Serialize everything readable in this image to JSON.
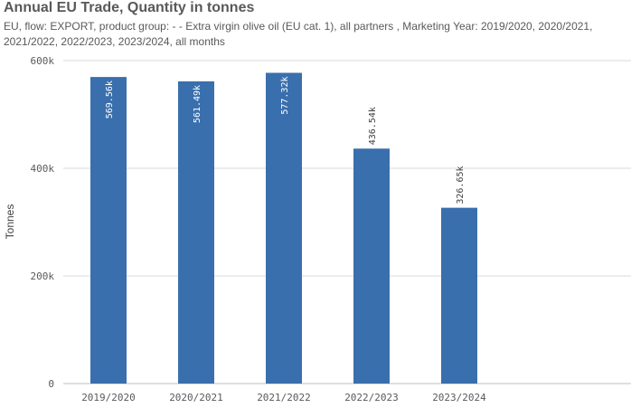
{
  "header": {
    "title": "Annual EU Trade, Quantity in tonnes",
    "subtitle": "EU, flow: EXPORT, product group: - - Extra virgin olive oil (EU cat. 1), all partners , Marketing Year: 2019/2020, 2020/2021, 2021/2022, 2022/2023, 2023/2024, all months"
  },
  "colors": {
    "bar": "#3a6fad",
    "grid": "#d9d9d9",
    "axis": "#bfbfbf",
    "label_inside": "#ffffff",
    "label_outside": "#404040"
  },
  "chart_data": {
    "type": "bar",
    "title": "Annual EU Trade, Quantity in tonnes",
    "xlabel": "",
    "ylabel": "Tonnes",
    "categories": [
      "2019/2020",
      "2020/2021",
      "2021/2022",
      "2022/2023",
      "2023/2024"
    ],
    "values": [
      569560,
      561490,
      577320,
      436540,
      326650
    ],
    "value_labels": [
      "569.56k",
      "561.49k",
      "577.32k",
      "436.54k",
      "326.65k"
    ],
    "ylim": [
      0,
      600000
    ],
    "yticks": [
      0,
      200000,
      400000,
      600000
    ],
    "ytick_labels": [
      "0",
      "200k",
      "400k",
      "600k"
    ],
    "grid": true,
    "legend": "none"
  }
}
